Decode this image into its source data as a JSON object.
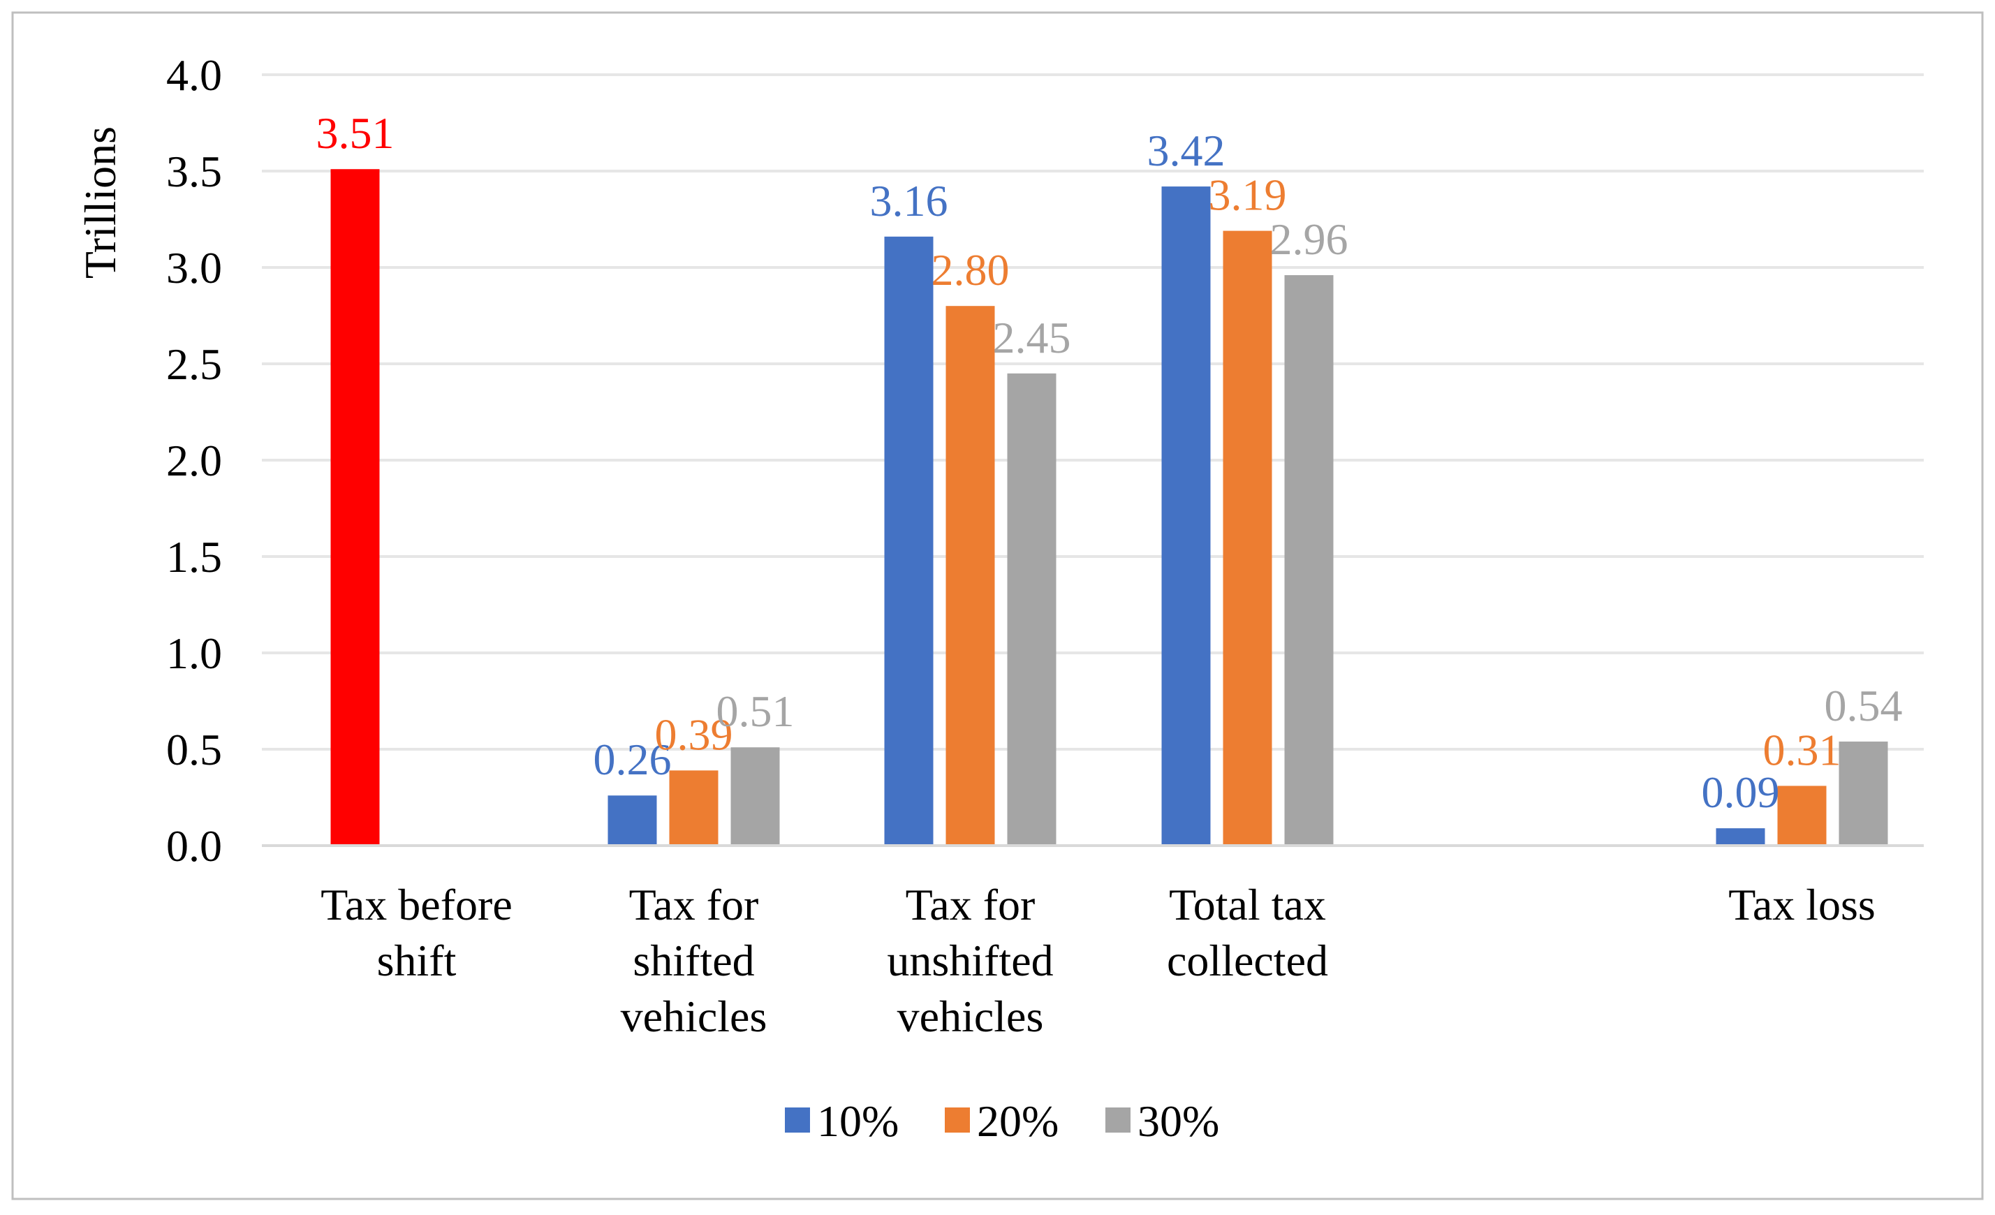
{
  "chart_data": {
    "type": "bar",
    "ylabel": "Trillions",
    "ylim": [
      0,
      4.0
    ],
    "yticks": [
      "0.0",
      "0.5",
      "1.0",
      "1.5",
      "2.0",
      "2.5",
      "3.0",
      "3.5",
      "4.0"
    ],
    "grid": true,
    "legend_position": "bottom",
    "categories": [
      [
        "Tax before",
        "shift"
      ],
      [
        "Tax for",
        "shifted",
        "vehicles"
      ],
      [
        "Tax for",
        "unshifted",
        "vehicles"
      ],
      [
        "Total tax",
        "collected"
      ],
      [],
      [
        "Tax loss"
      ]
    ],
    "series": [
      {
        "name": "10%",
        "color": "#4472C4",
        "values": [
          3.51,
          0.26,
          3.16,
          3.42,
          null,
          0.09
        ],
        "labels": [
          "3.51",
          "0.26",
          "3.16",
          "3.42",
          "",
          "0.09"
        ]
      },
      {
        "name": "20%",
        "color": "#ED7D31",
        "values": [
          null,
          0.39,
          2.8,
          3.19,
          null,
          0.31
        ],
        "labels": [
          "",
          "0.39",
          "2.80",
          "3.19",
          "",
          "0.31"
        ]
      },
      {
        "name": "30%",
        "color": "#A5A5A5",
        "values": [
          null,
          0.51,
          2.45,
          2.96,
          null,
          0.54
        ],
        "labels": [
          "",
          "0.51",
          "2.45",
          "2.96",
          "",
          "0.54"
        ]
      }
    ],
    "highlight": {
      "category_index": 0,
      "color": "#FF0000"
    }
  }
}
